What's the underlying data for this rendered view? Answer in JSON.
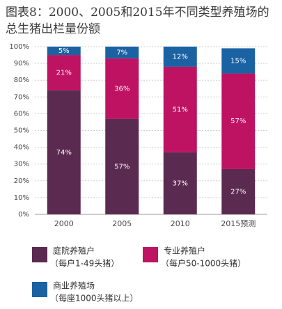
{
  "chart_data": {
    "type": "stacked_bar",
    "title": "图表8：2000、2005和2015年不同类型养殖场的总生猪出栏量份额",
    "categories": [
      "2000",
      "2005",
      "2010",
      "2015预测"
    ],
    "series": [
      {
        "name": "庭院养殖户",
        "description": "（每户1-49头猪）",
        "color": "#5a2a50",
        "values": [
          74,
          57,
          37,
          27
        ],
        "value_labels": [
          "74%",
          "57%",
          "37%",
          "27%"
        ]
      },
      {
        "name": "专业养殖户",
        "description": "（每户50-1000头猪）",
        "color": "#be1262",
        "values": [
          21,
          36,
          51,
          57
        ],
        "value_labels": [
          "21%",
          "36%",
          "51%",
          "57%"
        ]
      },
      {
        "name": "商业养殖场",
        "description": "（每座1000头猪以上）",
        "color": "#1b62a3",
        "values": [
          5,
          7,
          12,
          15
        ],
        "value_labels": [
          "5%",
          "7%",
          "12%",
          "15%"
        ]
      }
    ],
    "ylim": [
      0,
      100
    ],
    "yticks": [
      {
        "value": 0,
        "label": "0%"
      },
      {
        "value": 10,
        "label": "10%"
      },
      {
        "value": 20,
        "label": "20%"
      },
      {
        "value": 30,
        "label": "30%"
      },
      {
        "value": 40,
        "label": "40%"
      },
      {
        "value": 50,
        "label": "50%"
      },
      {
        "value": 60,
        "label": "60%"
      },
      {
        "value": 70,
        "label": "70%"
      },
      {
        "value": 80,
        "label": "80%"
      },
      {
        "value": 90,
        "label": "90%"
      },
      {
        "value": 100,
        "label": "100%"
      }
    ],
    "grid": true
  }
}
